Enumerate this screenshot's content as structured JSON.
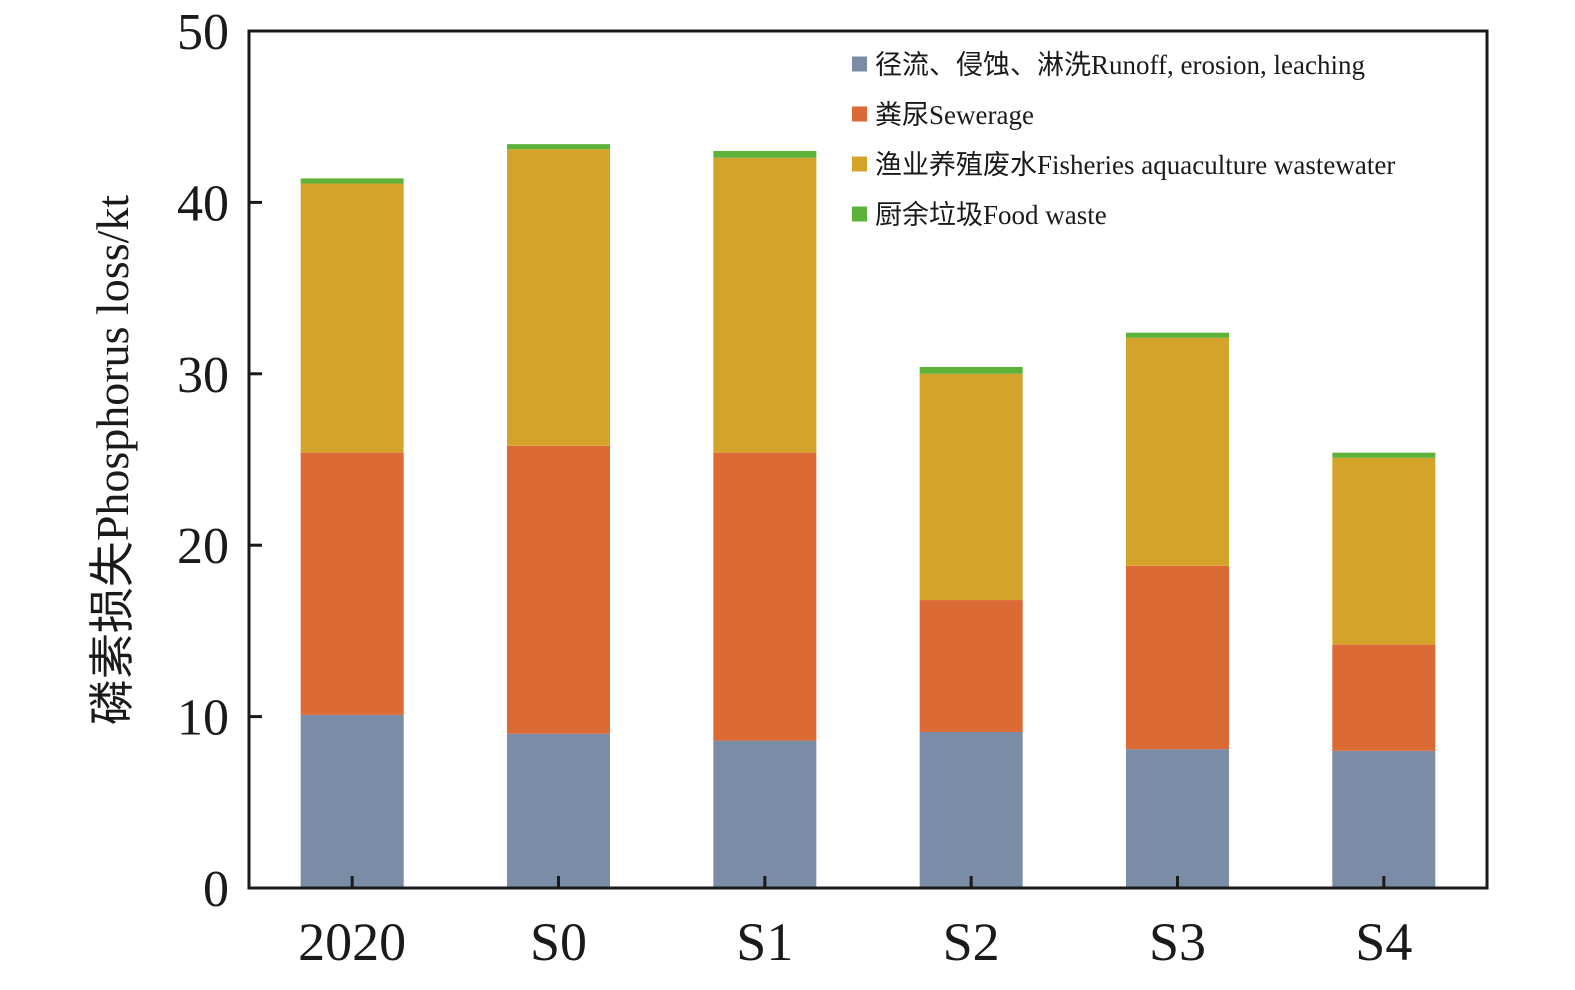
{
  "chart_data": {
    "type": "bar",
    "stacked": true,
    "categories": [
      "2020",
      "S0",
      "S1",
      "S2",
      "S3",
      "S4"
    ],
    "series": [
      {
        "name": "径流、侵蚀、淋洗Runoff, erosion, leaching",
        "color": "#7a8ca6",
        "values": [
          10.1,
          9.0,
          8.6,
          9.1,
          8.1,
          8.0
        ]
      },
      {
        "name": "粪尿Sewerage",
        "color": "#db6a35",
        "values": [
          15.3,
          16.8,
          16.8,
          7.7,
          10.7,
          6.2
        ]
      },
      {
        "name": "渔业养殖废水Fisheries aquaculture wastewater",
        "color": "#d4a32a",
        "values": [
          15.7,
          17.3,
          17.2,
          13.2,
          13.3,
          10.9
        ]
      },
      {
        "name": "厨余垃圾Food waste",
        "color": "#5db33a",
        "values": [
          0.3,
          0.3,
          0.4,
          0.4,
          0.3,
          0.3
        ]
      }
    ],
    "ylabel": "磷素损失Phosphorus loss/kt",
    "xlabel": "",
    "ylim": [
      0,
      50
    ],
    "yticks": [
      0,
      10,
      20,
      30,
      40,
      50
    ],
    "grid": false,
    "legend_position": "top-right"
  }
}
